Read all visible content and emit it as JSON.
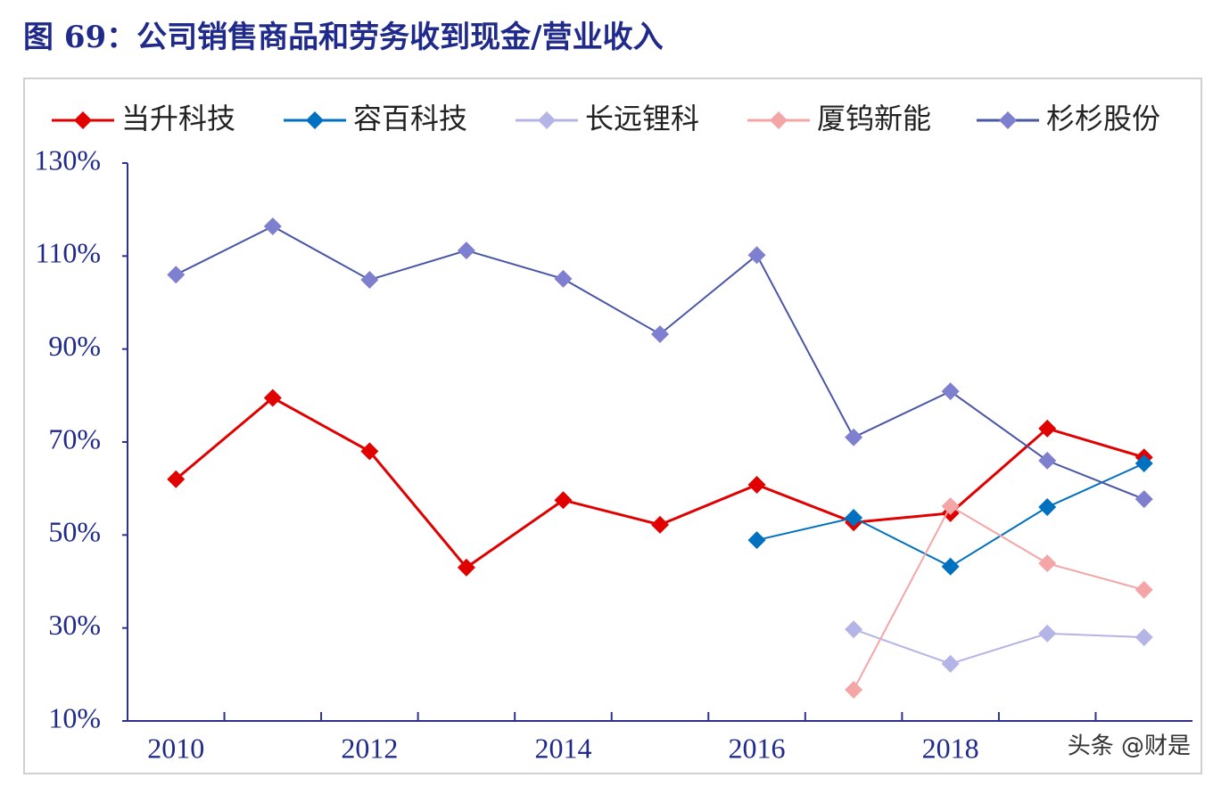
{
  "chart_data": {
    "type": "line",
    "title": "图 69：公司销售商品和劳务收到现金/营业收入",
    "categories": [
      "2010",
      null,
      "2012",
      null,
      "2014",
      null,
      "2016",
      null,
      "2018",
      null,
      null
    ],
    "series": [
      {
        "name": "当升科技",
        "color": "#e00000",
        "values": [
          62,
          79.5,
          68,
          43,
          57.5,
          52.2,
          60.8,
          52.7,
          54.7,
          72.9,
          66.7
        ]
      },
      {
        "name": "容百科技",
        "color": "#0070c0",
        "values": [
          null,
          null,
          null,
          null,
          null,
          null,
          48.9,
          53.7,
          43.2,
          56,
          65.4
        ]
      },
      {
        "name": "长远锂科",
        "color": "#b4b4e6",
        "values": [
          null,
          null,
          null,
          null,
          null,
          null,
          null,
          29.7,
          22.3,
          28.8,
          28
        ]
      },
      {
        "name": "厦钨新能",
        "color": "#f4a6a6",
        "values": [
          null,
          null,
          null,
          null,
          null,
          null,
          null,
          16.7,
          56.2,
          43.9,
          38.2
        ]
      },
      {
        "name": "杉杉股份",
        "color": "#7f7fd0",
        "values": [
          106,
          116.4,
          104.9,
          111.2,
          105.1,
          93.2,
          110.2,
          71,
          80.9,
          66,
          57.7
        ]
      }
    ],
    "ylim": [
      10,
      130
    ],
    "yticks": [
      {
        "value": 10,
        "label": "10%"
      },
      {
        "value": 30,
        "label": "30%"
      },
      {
        "value": 50,
        "label": "50%"
      },
      {
        "value": 70,
        "label": "70%"
      },
      {
        "value": 90,
        "label": "90%"
      },
      {
        "value": 110,
        "label": "110%"
      },
      {
        "value": 130,
        "label": "130%"
      }
    ],
    "legend": "top",
    "watermark": "头条 @财是"
  }
}
